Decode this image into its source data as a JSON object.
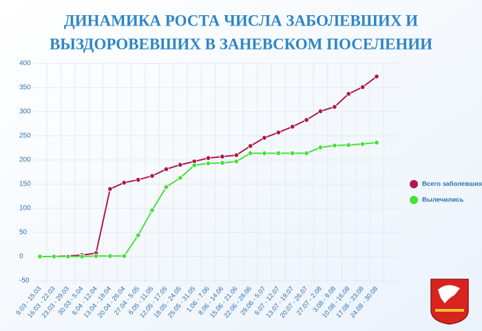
{
  "chart_data": {
    "type": "line",
    "title": [
      "ДИНАМИКА РОСТА ЧИСЛА ЗАБОЛЕВШИХ И",
      "ВЫЗДОРОВЕВШИХ В ЗАНЕВСКОМ ПОСЕЛЕНИИ"
    ],
    "categories": [
      "9.03 - 15.03",
      "16.03 - 22.03",
      "23.03 - 29.03",
      "30.03 - 5.04",
      "6.04 - 12.04",
      "13.04 - 19.04",
      "20.04 - 26.04",
      "27.04 - 5.05",
      "6.05 - 11.05",
      "12.05 - 17.05",
      "18.05 - 24.05",
      "25.05 - 31.05",
      "1.06 - 7.06",
      "8.06 - 14.06",
      "15.06 - 21.06",
      "22.06 - 28.06",
      "29.06 - 5.07",
      "6.07 - 12.07",
      "13.07 - 19.07",
      "20.07 - 26.07",
      "27.07 - 2.08",
      "3.08 - 9.08",
      "10.08 - 16.08",
      "17.08 - 23.08",
      "24.08 - 30.08"
    ],
    "series": [
      {
        "name": "Всего заболевших",
        "color": "#b0174c",
        "values": [
          0,
          0,
          1,
          3,
          7,
          140,
          153,
          159,
          167,
          181,
          190,
          197,
          204,
          207,
          210,
          229,
          246,
          257,
          269,
          283,
          301,
          310,
          337,
          351,
          373
        ]
      },
      {
        "name": "Вылечились",
        "color": "#46e03a",
        "values": [
          0,
          0,
          0,
          0,
          1,
          1,
          1,
          44,
          96,
          144,
          163,
          189,
          193,
          194,
          197,
          214,
          214,
          214,
          214,
          214,
          226,
          230,
          231,
          233,
          236
        ]
      }
    ],
    "ylim": [
      -50,
      400
    ],
    "yticks": [
      -50,
      0,
      50,
      100,
      150,
      200,
      250,
      300,
      350,
      400
    ],
    "grid": true,
    "legend": "right"
  }
}
